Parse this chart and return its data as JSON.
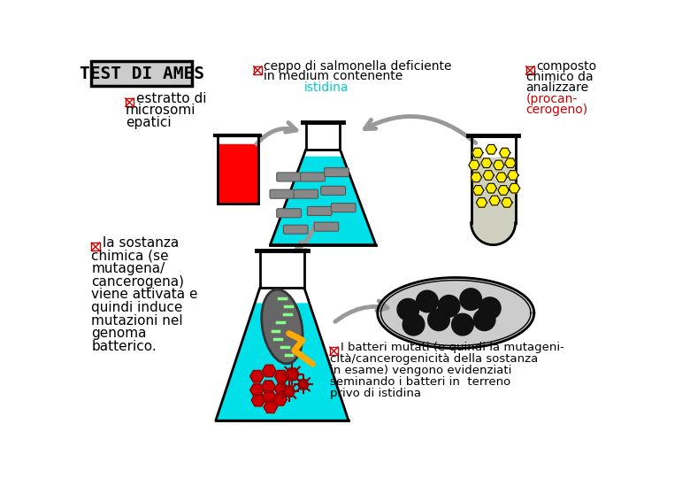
{
  "title": "TEST DI AMES",
  "background_color": "#ffffff",
  "label_top_center_line1": "ceppo di salmonella deficiente",
  "label_top_center_line2": "in medium contenente",
  "label_top_center_highlight": "istidina",
  "label_top_right_line1": "composto",
  "label_top_right_line2": "chimico da",
  "label_top_right_line3": "analizzare",
  "label_top_right_line4": "(procan-",
  "label_top_right_line5": "cerogeno)",
  "label_top_left_line1": "estratto di",
  "label_top_left_line2": "microsomi",
  "label_top_left_line3": "epatici",
  "label_mid_left_lines": [
    "la sostanza",
    "chimica (se",
    "mutagena/",
    "cancerogena)",
    "viene attivata e",
    "quindi induce",
    "mutazioni nel",
    "genoma",
    "batterico."
  ],
  "label_bottom_right_lines": [
    "I batteri mutati (e quindi la mutageni-",
    "cità/cancerogenicità della sostanza",
    "in esame) vengono evidenziati",
    "seminando i batteri in  terreno",
    "privo di istidina"
  ],
  "cyan": "#00e0e8",
  "red": "#ff0000",
  "dark_red": "#cc0000",
  "gray_arrow": "#999999",
  "gray_dark": "#666666",
  "yellow": "#ffee00",
  "gold": "#ffaa00",
  "green_dna": "#88ff88",
  "bacteria_gray": "#777777"
}
